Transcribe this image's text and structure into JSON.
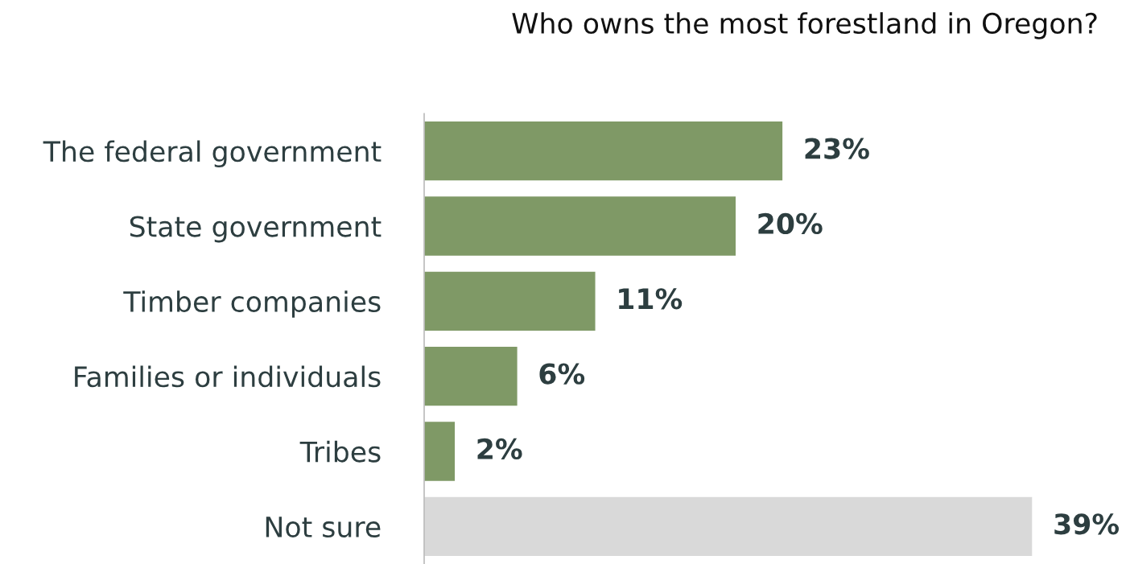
{
  "chart_data": {
    "type": "bar",
    "orientation": "horizontal",
    "title": "Who owns the most forestland in Oregon?",
    "categories": [
      "The federal government",
      "State government",
      "Timber companies",
      "Families or individuals",
      "Tribes",
      "Not sure"
    ],
    "values": [
      23,
      20,
      11,
      6,
      2,
      39
    ],
    "colors": [
      "#7f9966",
      "#7f9966",
      "#7f9966",
      "#7f9966",
      "#7f9966",
      "#d9d9d9"
    ],
    "value_labels": [
      "23%",
      "20%",
      "11%",
      "6%",
      "2%",
      "39%"
    ],
    "grid": false,
    "legend": false
  }
}
